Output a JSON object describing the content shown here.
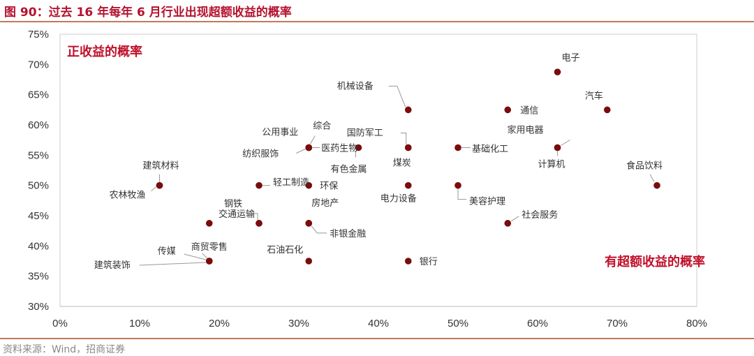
{
  "figure": {
    "title": "图 90：过去 16 年每年 6 月行业出现超额收益的概率",
    "source": "资料来源：Wind，招商证券"
  },
  "colors": {
    "point": "#7a0c0c",
    "accent": "#c0102a",
    "rule": "#c07a5a",
    "axis": "#bbbbbb"
  },
  "chart_data": {
    "type": "scatter",
    "title": "",
    "xlabel": "有超额收益的概率",
    "ylabel": "正收益的概率",
    "xlim": [
      0,
      80
    ],
    "ylim": [
      30,
      75
    ],
    "x_ticks": [
      0,
      10,
      20,
      30,
      40,
      50,
      60,
      70,
      80
    ],
    "y_ticks": [
      30,
      35,
      40,
      45,
      50,
      55,
      60,
      65,
      70,
      75
    ],
    "x_tick_labels": [
      "0%",
      "10%",
      "20%",
      "30%",
      "40%",
      "50%",
      "60%",
      "70%",
      "80%"
    ],
    "y_tick_labels": [
      "30%",
      "35%",
      "40%",
      "45%",
      "50%",
      "55%",
      "60%",
      "65%",
      "70%",
      "75%"
    ],
    "grid": false,
    "points": [
      {
        "label": "电子",
        "x": 62.5,
        "y": 68.75
      },
      {
        "label": "汽车",
        "x": 68.75,
        "y": 62.5
      },
      {
        "label": "通信",
        "x": 56.25,
        "y": 62.5
      },
      {
        "label": "机械设备",
        "x": 43.75,
        "y": 62.5
      },
      {
        "label": "家用电器",
        "x": 62.5,
        "y": 56.25
      },
      {
        "label": "计算机",
        "x": 62.5,
        "y": 56.25
      },
      {
        "label": "基础化工",
        "x": 50,
        "y": 56.25
      },
      {
        "label": "国防军工",
        "x": 43.75,
        "y": 56.25
      },
      {
        "label": "煤炭",
        "x": 43.75,
        "y": 56.25
      },
      {
        "label": "有色金属",
        "x": 37.5,
        "y": 56.25
      },
      {
        "label": "医药生物",
        "x": 31.25,
        "y": 56.25
      },
      {
        "label": "综合",
        "x": 31.25,
        "y": 56.25
      },
      {
        "label": "公用事业",
        "x": 31.25,
        "y": 56.25
      },
      {
        "label": "纺织服饰",
        "x": 31.25,
        "y": 56.25
      },
      {
        "label": "食品饮料",
        "x": 75,
        "y": 50
      },
      {
        "label": "美容护理",
        "x": 50,
        "y": 50
      },
      {
        "label": "电力设备",
        "x": 43.75,
        "y": 50
      },
      {
        "label": "环保",
        "x": 31.25,
        "y": 50
      },
      {
        "label": "轻工制造",
        "x": 25,
        "y": 50
      },
      {
        "label": "建筑材料",
        "x": 12.5,
        "y": 50
      },
      {
        "label": "农林牧渔",
        "x": 12.5,
        "y": 50
      },
      {
        "label": "社会服务",
        "x": 56.25,
        "y": 43.75
      },
      {
        "label": "房地产",
        "x": 31.25,
        "y": 43.75
      },
      {
        "label": "非银金融",
        "x": 31.25,
        "y": 43.75
      },
      {
        "label": "钢铁",
        "x": 25,
        "y": 43.75
      },
      {
        "label": "交通运输",
        "x": 25,
        "y": 43.75
      },
      {
        "label": "",
        "x": 18.75,
        "y": 43.75
      },
      {
        "label": "银行",
        "x": 43.75,
        "y": 37.5
      },
      {
        "label": "石油石化",
        "x": 31.25,
        "y": 37.5
      },
      {
        "label": "商贸零售",
        "x": 18.75,
        "y": 37.5
      },
      {
        "label": "传媒",
        "x": 18.75,
        "y": 37.5
      },
      {
        "label": "建筑装饰",
        "x": 18.75,
        "y": 37.5
      }
    ]
  }
}
